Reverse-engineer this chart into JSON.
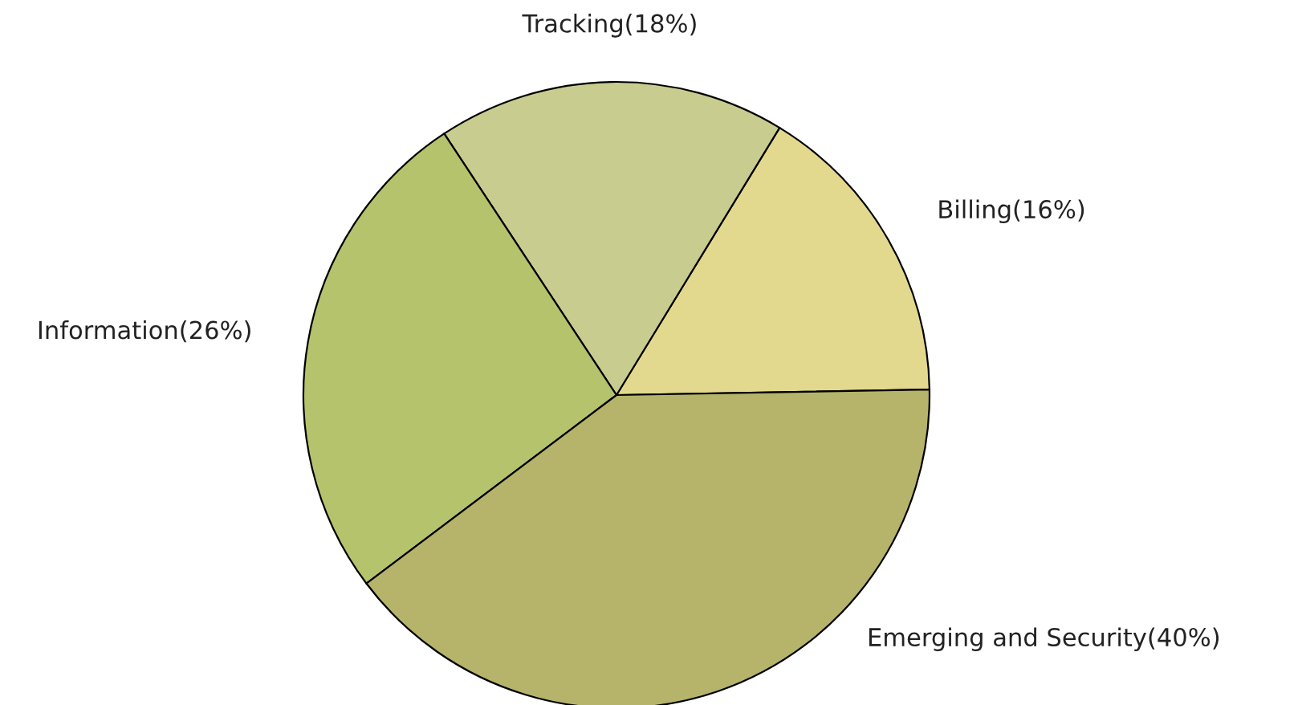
{
  "chart_data": {
    "type": "pie",
    "categories": [
      "Billing(16%)",
      "Tracking(18%)",
      "Information(26%)",
      "Emerging and Security(40%)"
    ],
    "values": [
      16,
      18,
      26,
      40
    ],
    "colors": [
      "#e3d98e",
      "#c8cc8f",
      "#b5c36d",
      "#b5b46a"
    ]
  }
}
